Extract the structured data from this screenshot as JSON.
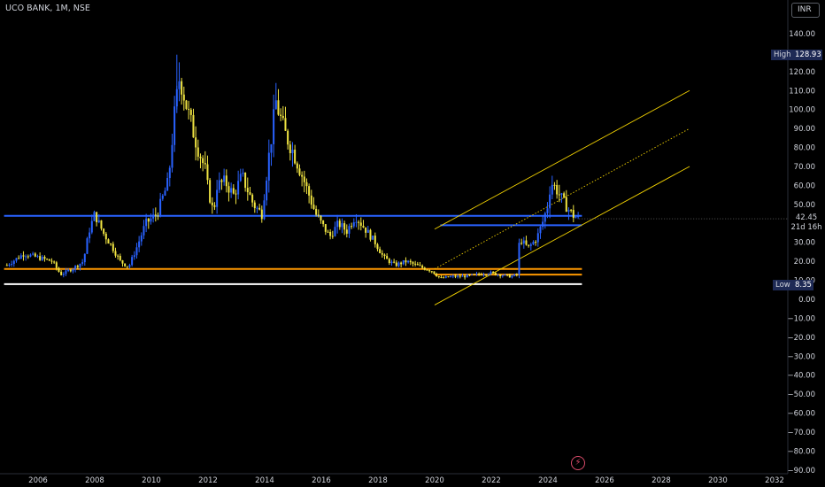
{
  "header": {
    "symbol": "UCO BANK, 1M, NSE"
  },
  "currency_button": "INR",
  "high_label": {
    "label": "High",
    "value": "128.93"
  },
  "low_label": {
    "label": "Low",
    "value": "8.35"
  },
  "last_price": {
    "value": "42.45",
    "countdown": "21d 16h"
  },
  "colors": {
    "background": "#000000",
    "candle_up": "#2962ff",
    "candle_down": "#f0e442",
    "support_blue": "#2962ff",
    "support_orange": "#ff9800",
    "support_white": "#ffffff",
    "channel": "#f0d000"
  },
  "chart_data": {
    "type": "candlestick",
    "title": "UCO BANK, 1M, NSE",
    "y_axis_ticks": [
      "140.00",
      "130.00",
      "120.00",
      "110.00",
      "100.00",
      "90.00",
      "80.00",
      "70.00",
      "60.00",
      "50.00",
      "40.00",
      "30.00",
      "20.00",
      "10.00",
      "0.00",
      "−10.00",
      "−20.00",
      "−30.00",
      "−40.00",
      "−50.00",
      "−60.00",
      "−70.00",
      "−80.00",
      "−90.00"
    ],
    "x_axis_ticks": [
      "2006",
      "2008",
      "2010",
      "2012",
      "2014",
      "2016",
      "2018",
      "2020",
      "2022",
      "2024",
      "2026",
      "2028",
      "2030",
      "2032"
    ],
    "ylim": [
      -90,
      140
    ],
    "price_path": [
      [
        2004.9,
        18
      ],
      [
        2005.5,
        24
      ],
      [
        2006.0,
        22
      ],
      [
        2006.5,
        20
      ],
      [
        2006.8,
        13
      ],
      [
        2007.2,
        16
      ],
      [
        2007.6,
        20
      ],
      [
        2007.8,
        36
      ],
      [
        2008.0,
        45
      ],
      [
        2008.3,
        35
      ],
      [
        2008.6,
        28
      ],
      [
        2008.9,
        20
      ],
      [
        2009.2,
        17
      ],
      [
        2009.5,
        28
      ],
      [
        2009.8,
        40
      ],
      [
        2010.2,
        45
      ],
      [
        2010.6,
        62
      ],
      [
        2010.8,
        95
      ],
      [
        2011.0,
        118
      ],
      [
        2011.3,
        98
      ],
      [
        2011.6,
        82
      ],
      [
        2011.9,
        68
      ],
      [
        2012.0,
        58
      ],
      [
        2012.2,
        45
      ],
      [
        2012.3,
        60
      ],
      [
        2012.6,
        62
      ],
      [
        2012.9,
        55
      ],
      [
        2013.2,
        65
      ],
      [
        2013.6,
        50
      ],
      [
        2013.9,
        45
      ],
      [
        2014.1,
        70
      ],
      [
        2014.4,
        104
      ],
      [
        2014.7,
        88
      ],
      [
        2015.0,
        78
      ],
      [
        2015.4,
        62
      ],
      [
        2015.8,
        45
      ],
      [
        2016.0,
        40
      ],
      [
        2016.3,
        33
      ],
      [
        2016.6,
        40
      ],
      [
        2016.9,
        36
      ],
      [
        2017.2,
        44
      ],
      [
        2017.5,
        38
      ],
      [
        2017.9,
        30
      ],
      [
        2018.2,
        22
      ],
      [
        2018.6,
        18
      ],
      [
        2019.0,
        20
      ],
      [
        2019.5,
        17
      ],
      [
        2019.9,
        15
      ],
      [
        2020.2,
        11
      ],
      [
        2020.6,
        12
      ],
      [
        2021.0,
        12
      ],
      [
        2021.5,
        13
      ],
      [
        2021.9,
        14
      ],
      [
        2022.3,
        13
      ],
      [
        2022.7,
        12
      ],
      [
        2022.9,
        13
      ],
      [
        2023.0,
        32
      ],
      [
        2023.3,
        27
      ],
      [
        2023.6,
        32
      ],
      [
        2023.8,
        40
      ],
      [
        2024.0,
        50
      ],
      [
        2024.1,
        62
      ],
      [
        2024.3,
        58
      ],
      [
        2024.6,
        50
      ],
      [
        2024.9,
        44
      ],
      [
        2025.1,
        42.45
      ]
    ],
    "high": 128.93,
    "low": 8.35,
    "last": 42.45,
    "horizontal_levels": [
      {
        "price": 44,
        "color": "blue",
        "x_from": 2004.8,
        "x_to": 2025.2
      },
      {
        "price": 39,
        "color": "blue",
        "x_from": 2020.2,
        "x_to": 2025.2
      },
      {
        "price": 16,
        "color": "orange",
        "x_from": 2004.8,
        "x_to": 2025.2
      },
      {
        "price": 13,
        "color": "orange",
        "x_from": 2020.0,
        "x_to": 2025.2
      },
      {
        "price": 8,
        "color": "white",
        "x_from": 2004.8,
        "x_to": 2025.2
      }
    ],
    "channel": [
      {
        "from": [
          2020.0,
          37
        ],
        "to": [
          2029.0,
          110
        ],
        "style": "solid"
      },
      {
        "from": [
          2020.0,
          16
        ],
        "to": [
          2029.0,
          90
        ],
        "style": "dotted"
      },
      {
        "from": [
          2020.0,
          -3
        ],
        "to": [
          2029.0,
          70
        ],
        "style": "solid"
      }
    ]
  }
}
